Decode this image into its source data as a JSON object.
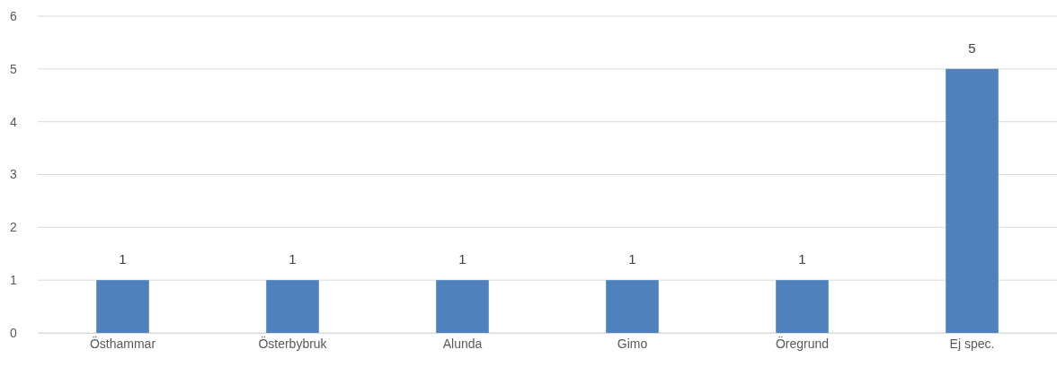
{
  "chart_data": {
    "type": "bar",
    "categories": [
      "Östhammar",
      "Österbybruk",
      "Alunda",
      "Gimo",
      "Öregrund",
      "Ej spec."
    ],
    "values": [
      1,
      1,
      1,
      1,
      1,
      5
    ],
    "color": "#4f81bd",
    "ylim": [
      0,
      6
    ],
    "yticks": [
      0,
      1,
      2,
      3,
      4,
      5,
      6
    ],
    "grid": "y",
    "data_labels": true
  }
}
